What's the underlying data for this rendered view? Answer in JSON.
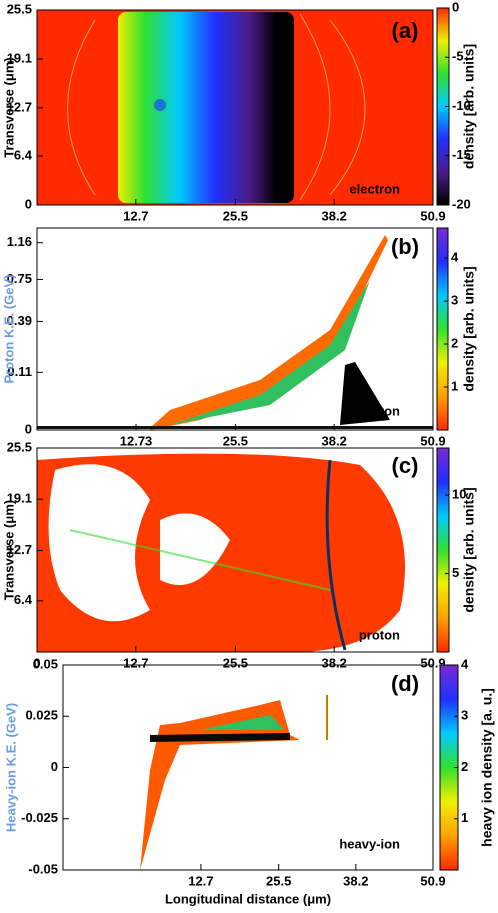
{
  "chart_data": [
    {
      "type": "heatmap",
      "panel_label": "(a)",
      "species": "electron",
      "ylabel": "Transverse (μm)",
      "xlim": [
        0,
        50.9
      ],
      "xticks": [
        12.7,
        25.5,
        38.2,
        50.9
      ],
      "ylim": [
        0,
        25.5
      ],
      "yticks": [
        0,
        6.4,
        12.7,
        19.1,
        25.5
      ],
      "colorbar": {
        "label": "density [arb. units]",
        "lim": [
          -20,
          0
        ],
        "ticks": [
          0,
          -5,
          -10,
          -15,
          -20
        ],
        "colors": [
          "#000000",
          "#4b1b86",
          "#2030ff",
          "#00c8ff",
          "#30e030",
          "#f0f000",
          "#ff2a00"
        ]
      }
    },
    {
      "type": "heatmap",
      "panel_label": "(b)",
      "species": "proton",
      "ylabel": "Proton K.E. (GeV)",
      "ylabel_color": "#6a9be0",
      "xlim": [
        0,
        50.9
      ],
      "xticks": [
        12.73,
        25.5,
        38.2,
        50.9
      ],
      "ylim": [
        0,
        1.35
      ],
      "yscale": "sqrt",
      "yticks": [
        0,
        0.11,
        0.39,
        0.75,
        1.16
      ],
      "colorbar": {
        "label": "density [arb. units]",
        "lim": [
          0,
          4.7
        ],
        "ticks": [
          1,
          2,
          3,
          4
        ],
        "colors": [
          "#ff2a00",
          "#ffa000",
          "#f0f000",
          "#30e030",
          "#00c8ff",
          "#2030ff",
          "#7a2ad0"
        ]
      }
    },
    {
      "type": "heatmap",
      "panel_label": "(c)",
      "species": "proton",
      "ylabel": "Transverse (μm)",
      "xlim": [
        0,
        50.9
      ],
      "xticks": [
        0,
        12.7,
        25.5,
        38.2,
        50.9
      ],
      "ylim": [
        0,
        25.5
      ],
      "yticks": [
        6.4,
        12.7,
        19.1,
        25.5
      ],
      "colorbar": {
        "label": "density [arb. units]",
        "lim": [
          0,
          13
        ],
        "ticks": [
          5,
          10
        ],
        "colors": [
          "#ff2a00",
          "#ffa000",
          "#f0f000",
          "#30e030",
          "#00c8ff",
          "#2030ff",
          "#7a2ad0"
        ]
      }
    },
    {
      "type": "heatmap",
      "panel_label": "(d)",
      "species": "heavy-ion",
      "ylabel": "Heavy-ion K.E. (GeV)",
      "ylabel_color": "#6a9be0",
      "xlabel": "Longitudinal distance (μm)",
      "xlim": [
        -10,
        50.9
      ],
      "xticks": [
        12.7,
        25.5,
        38.2,
        50.9
      ],
      "ylim": [
        -0.05,
        0.05
      ],
      "yticks": [
        -0.05,
        -0.025,
        0,
        0.025,
        0.05
      ],
      "colorbar": {
        "label": "heavy ion density [a. u.]",
        "lim": [
          0,
          4
        ],
        "ticks": [
          1,
          2,
          3,
          4
        ],
        "colors": [
          "#ff2a00",
          "#ffa000",
          "#f0f000",
          "#30e030",
          "#00c8ff",
          "#2030ff",
          "#7a2ad0"
        ]
      }
    }
  ]
}
